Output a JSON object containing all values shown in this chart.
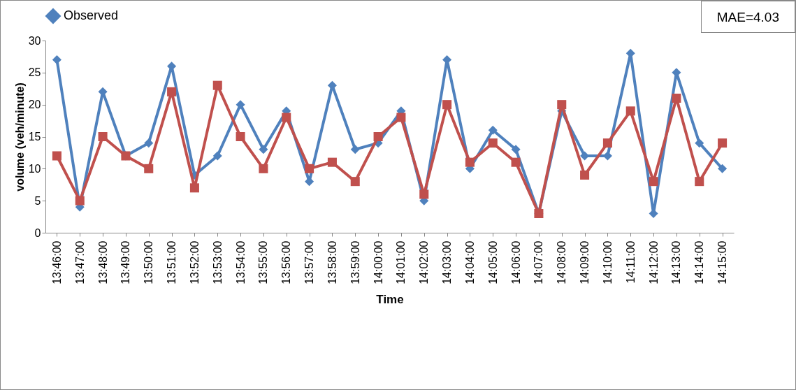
{
  "chart_data": {
    "type": "line",
    "xlabel": "Time",
    "ylabel": "volume (veh/minute)",
    "categories": [
      "13:46:00",
      "13:47:00",
      "13:48:00",
      "13:49:00",
      "13:50:00",
      "13:51:00",
      "13:52:00",
      "13:53:00",
      "13:54:00",
      "13:55:00",
      "13:56:00",
      "13:57:00",
      "13:58:00",
      "13:59:00",
      "14:00:00",
      "14:01:00",
      "14:02:00",
      "14:03:00",
      "14:04:00",
      "14:05:00",
      "14:06:00",
      "14:07:00",
      "14:08:00",
      "14:09:00",
      "14:10:00",
      "14:11:00",
      "14:12:00",
      "14:13:00",
      "14:14:00",
      "14:15:00"
    ],
    "series": [
      {
        "name": "Observed",
        "color": "#4f81bd",
        "marker": "diamond",
        "values": [
          27,
          4,
          22,
          12,
          14,
          26,
          9,
          12,
          20,
          13,
          19,
          8,
          23,
          13,
          14,
          19,
          5,
          27,
          10,
          16,
          13,
          3,
          19,
          12,
          12,
          28,
          3,
          25,
          14,
          10
        ]
      },
      {
        "color": "#c0504d",
        "marker": "square",
        "values": [
          12,
          5,
          15,
          12,
          10,
          22,
          7,
          23,
          15,
          10,
          18,
          10,
          11,
          8,
          15,
          18,
          6,
          20,
          11,
          14,
          11,
          3,
          20,
          9,
          14,
          19,
          8,
          21,
          8,
          14
        ]
      }
    ],
    "ylim": [
      0,
      30
    ],
    "yticks": [
      0,
      5,
      10,
      15,
      20,
      25,
      30
    ],
    "grid": false,
    "legend": "top",
    "line_style": "solid",
    "annotations": [
      "MAE=4.03"
    ]
  }
}
